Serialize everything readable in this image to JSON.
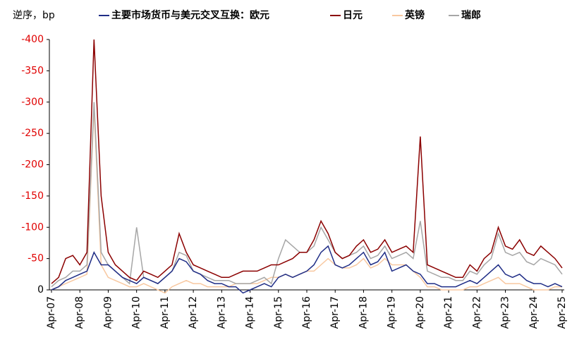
{
  "chart_data": {
    "type": "line",
    "y_axis_label": "逆序，bp",
    "categories": [
      "Apr-07",
      null,
      null,
      null,
      "Apr-08",
      null,
      null,
      null,
      "Apr-09",
      null,
      null,
      null,
      "Apr-10",
      null,
      null,
      null,
      "Apr-11",
      null,
      null,
      null,
      "Apr-12",
      null,
      null,
      null,
      "Apr-13",
      null,
      null,
      null,
      "Apr-14",
      null,
      null,
      null,
      "Apr-15",
      null,
      null,
      null,
      "Apr-16",
      null,
      null,
      null,
      "Apr-17",
      null,
      null,
      null,
      "Apr-18",
      null,
      null,
      null,
      "Apr-19",
      null,
      null,
      null,
      "Apr-20",
      null,
      null,
      null,
      "Apr-21",
      null,
      null,
      null,
      "Apr-22",
      null,
      null,
      null,
      "Apr-23",
      null,
      null,
      null,
      "Apr-24",
      null,
      null,
      null,
      "Apr-25"
    ],
    "series": [
      {
        "name": "主要市场货币与美元交叉互换：欧元",
        "color": "#1f2d86",
        "values": [
          0,
          -5,
          -15,
          -20,
          -25,
          -30,
          -60,
          -40,
          -40,
          -30,
          -20,
          -15,
          -10,
          -20,
          -15,
          -10,
          -20,
          -30,
          -50,
          -45,
          -30,
          -25,
          -15,
          -10,
          -10,
          -5,
          -5,
          5,
          0,
          -5,
          -10,
          -5,
          -20,
          -25,
          -20,
          -25,
          -30,
          -40,
          -60,
          -70,
          -40,
          -35,
          -40,
          -50,
          -60,
          -40,
          -45,
          -60,
          -30,
          -35,
          -40,
          -30,
          -25,
          -10,
          -10,
          -5,
          -5,
          -5,
          -10,
          -15,
          -10,
          -20,
          -30,
          -40,
          -25,
          -20,
          -25,
          -15,
          -10,
          -10,
          -5,
          -10,
          -5
        ]
      },
      {
        "name": "日元",
        "color": "#8b0000",
        "values": [
          -10,
          -20,
          -50,
          -55,
          -40,
          -60,
          -400,
          -150,
          -60,
          -40,
          -30,
          -20,
          -15,
          -30,
          -25,
          -20,
          -30,
          -40,
          -90,
          -60,
          -40,
          -35,
          -30,
          -25,
          -20,
          -20,
          -25,
          -30,
          -30,
          -30,
          -35,
          -40,
          -40,
          -45,
          -50,
          -60,
          -60,
          -80,
          -110,
          -90,
          -60,
          -50,
          -55,
          -70,
          -80,
          -60,
          -65,
          -80,
          -60,
          -65,
          -70,
          -60,
          -245,
          -40,
          -35,
          -30,
          -25,
          -20,
          -20,
          -40,
          -30,
          -50,
          -60,
          -100,
          -70,
          -65,
          -80,
          -60,
          -55,
          -70,
          -60,
          -50,
          -35
        ]
      },
      {
        "name": "英镑",
        "color": "#f8c8a0",
        "values": [
          0,
          -5,
          -10,
          -15,
          -20,
          -25,
          -290,
          -40,
          -20,
          -15,
          -10,
          -5,
          -5,
          -10,
          -5,
          0,
          5,
          -5,
          -10,
          -15,
          -10,
          -10,
          -5,
          -5,
          -5,
          -5,
          -10,
          -10,
          -10,
          -10,
          -15,
          -20,
          -20,
          -25,
          -20,
          -25,
          -30,
          -30,
          -40,
          -50,
          -40,
          -35,
          -35,
          -40,
          -50,
          -35,
          -40,
          -50,
          -40,
          -40,
          -40,
          -30,
          -20,
          -5,
          -5,
          0,
          0,
          0,
          0,
          -5,
          -5,
          -10,
          -15,
          -20,
          -10,
          -10,
          -10,
          -5,
          0,
          0,
          0,
          -5,
          -5
        ]
      },
      {
        "name": "瑞郎",
        "color": "#a6a6a6",
        "values": [
          -5,
          -15,
          -20,
          -30,
          -30,
          -40,
          -300,
          -60,
          -40,
          -30,
          -20,
          -10,
          -100,
          -20,
          -15,
          -10,
          -20,
          -30,
          -60,
          -55,
          -30,
          -25,
          -20,
          -15,
          -15,
          -15,
          -10,
          -10,
          -10,
          -15,
          -20,
          -10,
          -50,
          -80,
          -70,
          -60,
          -60,
          -70,
          -100,
          -80,
          -60,
          -50,
          -55,
          -60,
          -70,
          -50,
          -55,
          -70,
          -50,
          -55,
          -60,
          -50,
          -110,
          -30,
          -25,
          -20,
          -20,
          -15,
          -15,
          -30,
          -25,
          -40,
          -50,
          -90,
          -60,
          -55,
          -60,
          -45,
          -40,
          -50,
          -45,
          -40,
          -25
        ]
      }
    ],
    "ylim": [
      0,
      -400
    ],
    "yticks": [
      0,
      -50,
      -100,
      -150,
      -200,
      -250,
      -300,
      -350,
      -400
    ],
    "negative_tick_color": "#e00000",
    "grid": false
  }
}
